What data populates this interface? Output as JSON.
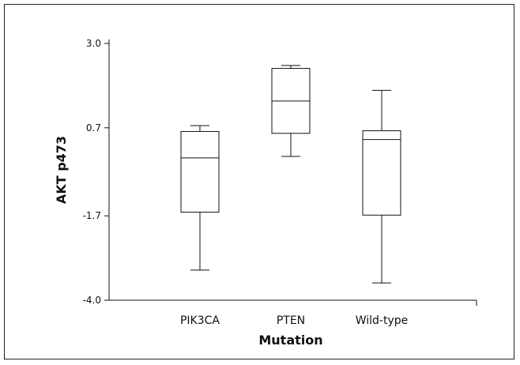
{
  "chart_data": {
    "type": "box",
    "xlabel": "Mutation",
    "ylabel": "AKT p473",
    "ylim": [
      -4.0,
      3.0
    ],
    "yticks": [
      3.0,
      0.7,
      -1.7,
      -4.0
    ],
    "ytick_labels": [
      "3.0",
      "0.7",
      "-1.7",
      "-4.0"
    ],
    "categories": [
      "PIK3CA",
      "PTEN",
      "Wild-type"
    ],
    "boxes": [
      {
        "category": "PIK3CA",
        "min": -3.18,
        "q1": -1.6,
        "median": -0.12,
        "q3": 0.6,
        "max": 0.76
      },
      {
        "category": "PTEN",
        "min": -0.08,
        "q1": 0.55,
        "median": 1.43,
        "q3": 2.32,
        "max": 2.4
      },
      {
        "category": "Wild-type",
        "min": -3.53,
        "q1": -1.68,
        "median": 0.38,
        "q3": 0.62,
        "max": 1.72
      }
    ],
    "grid": false,
    "legend": "none"
  }
}
